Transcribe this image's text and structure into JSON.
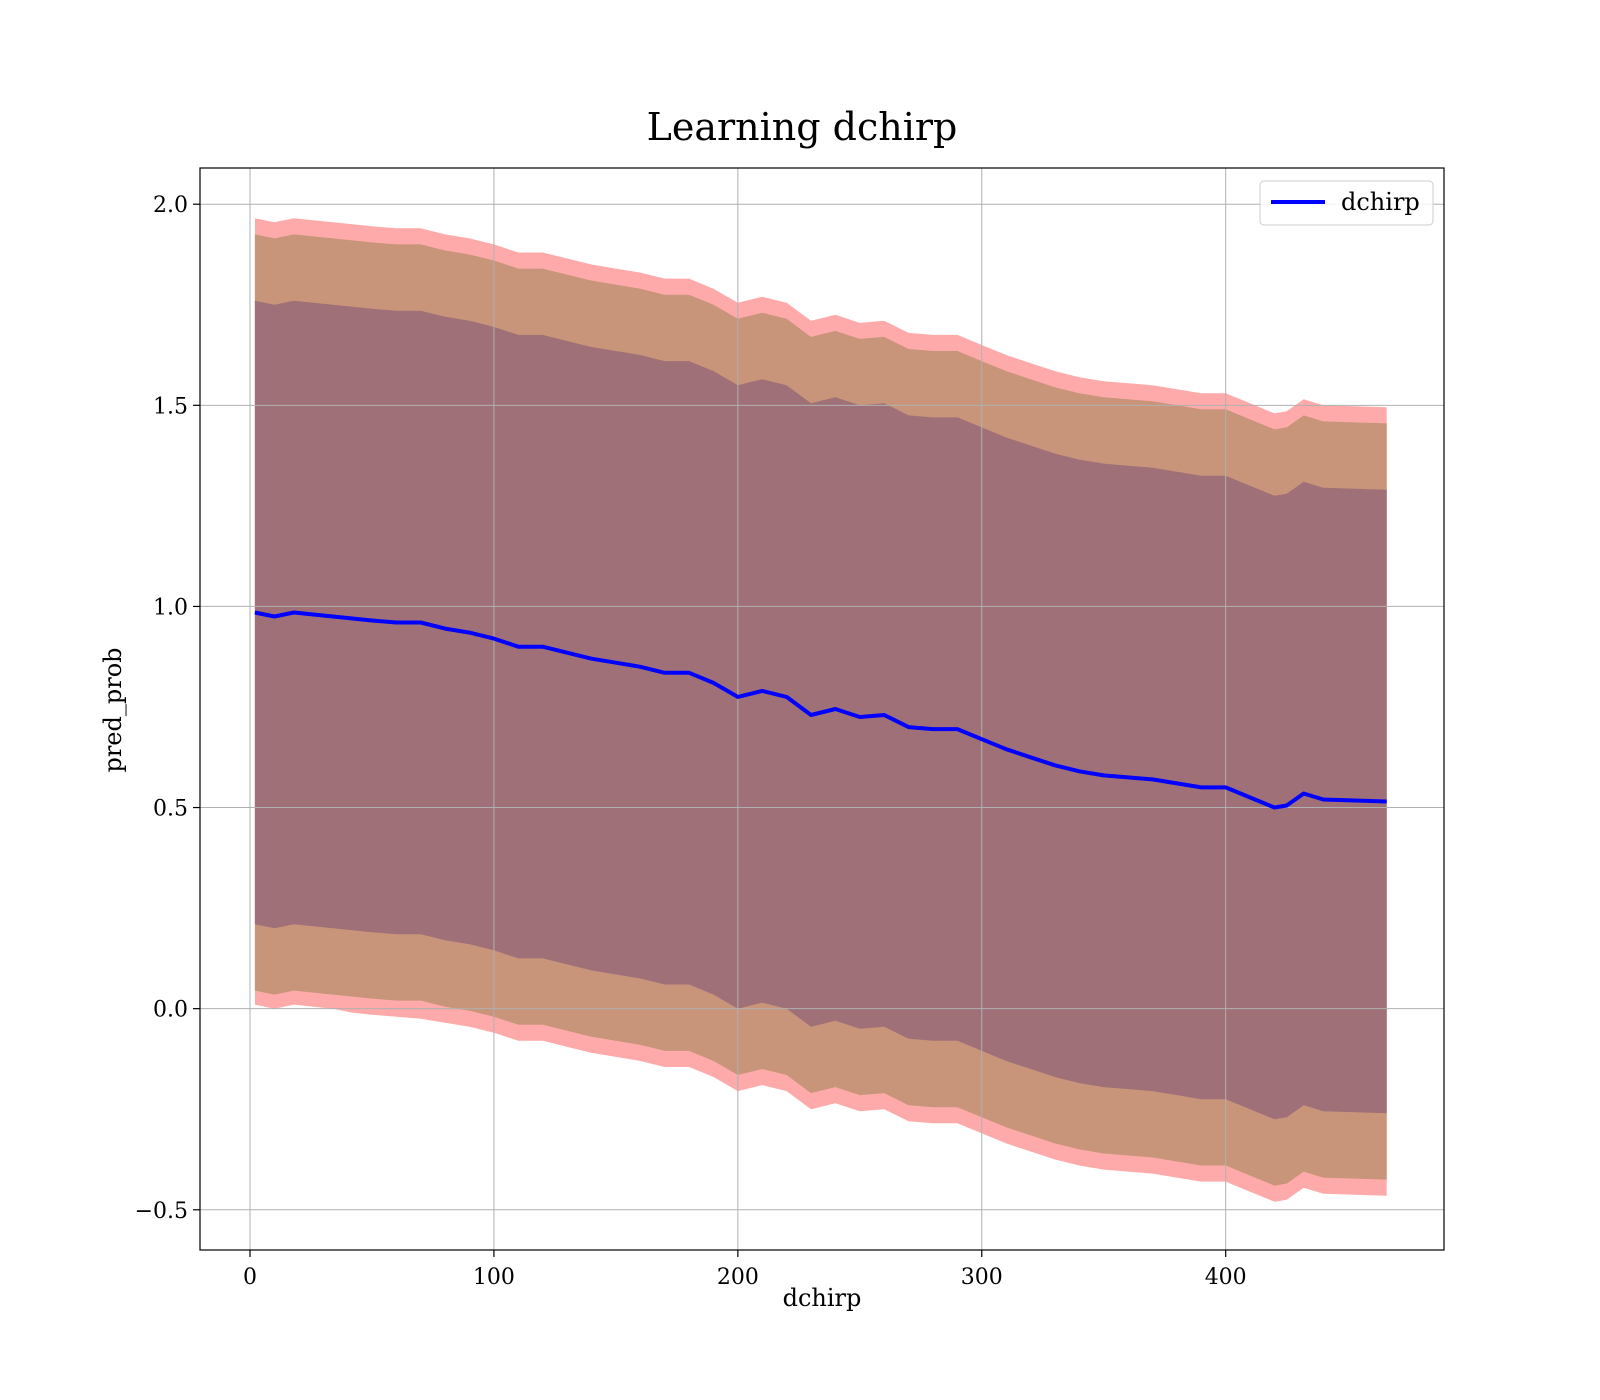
{
  "chart_data": {
    "type": "area",
    "title": "Learning dchirp",
    "xlabel": "dchirp",
    "ylabel": "pred_prob",
    "xlim": [
      -20.5,
      489.5
    ],
    "ylim": [
      -0.6,
      2.09
    ],
    "xticks": [
      0,
      100,
      200,
      300,
      400
    ],
    "xtick_labels": [
      "0",
      "100",
      "200",
      "300",
      "400"
    ],
    "yticks": [
      -0.5,
      0.0,
      0.5,
      1.0,
      1.5,
      2.0
    ],
    "ytick_labels": [
      "−0.5",
      "0.0",
      "0.5",
      "1.0",
      "1.5",
      "2.0"
    ],
    "grid": true,
    "legend": {
      "position": "top-right",
      "entries": [
        "dchirp"
      ]
    },
    "colors": {
      "line": "#0000ff",
      "band_outer": "#ffaaaa",
      "band_middle": "#c8957a",
      "band_inner": "#a07078"
    },
    "x": [
      2,
      10,
      18,
      26,
      34,
      42,
      50,
      60,
      70,
      80,
      90,
      100,
      110,
      120,
      130,
      140,
      150,
      160,
      170,
      180,
      190,
      200,
      210,
      220,
      230,
      240,
      250,
      260,
      270,
      280,
      290,
      300,
      310,
      320,
      330,
      340,
      350,
      360,
      370,
      380,
      390,
      400,
      410,
      420,
      425,
      432,
      440,
      466
    ],
    "series": [
      {
        "name": "dchirp",
        "values": [
          0.985,
          0.975,
          0.985,
          0.98,
          0.975,
          0.97,
          0.965,
          0.96,
          0.96,
          0.945,
          0.935,
          0.92,
          0.9,
          0.9,
          0.885,
          0.87,
          0.86,
          0.85,
          0.835,
          0.835,
          0.81,
          0.775,
          0.79,
          0.775,
          0.73,
          0.745,
          0.725,
          0.73,
          0.7,
          0.695,
          0.695,
          0.67,
          0.645,
          0.625,
          0.605,
          0.59,
          0.58,
          0.575,
          0.57,
          0.56,
          0.55,
          0.55,
          0.525,
          0.5,
          0.505,
          0.535,
          0.52,
          0.515
        ]
      }
    ],
    "bands": [
      {
        "label": "outer",
        "lower": [
          0.01,
          0.0,
          0.01,
          0.005,
          0.0,
          -0.01,
          -0.015,
          -0.02,
          -0.025,
          -0.035,
          -0.045,
          -0.06,
          -0.08,
          -0.08,
          -0.095,
          -0.11,
          -0.12,
          -0.13,
          -0.145,
          -0.145,
          -0.17,
          -0.205,
          -0.19,
          -0.205,
          -0.25,
          -0.235,
          -0.255,
          -0.25,
          -0.28,
          -0.285,
          -0.285,
          -0.31,
          -0.335,
          -0.355,
          -0.375,
          -0.39,
          -0.4,
          -0.405,
          -0.41,
          -0.42,
          -0.43,
          -0.43,
          -0.455,
          -0.48,
          -0.475,
          -0.445,
          -0.46,
          -0.465
        ],
        "upper": [
          1.965,
          1.955,
          1.965,
          1.96,
          1.955,
          1.95,
          1.945,
          1.94,
          1.94,
          1.925,
          1.915,
          1.9,
          1.88,
          1.88,
          1.865,
          1.85,
          1.84,
          1.83,
          1.815,
          1.815,
          1.79,
          1.755,
          1.77,
          1.755,
          1.71,
          1.725,
          1.705,
          1.71,
          1.68,
          1.675,
          1.675,
          1.65,
          1.625,
          1.605,
          1.585,
          1.57,
          1.56,
          1.555,
          1.55,
          1.54,
          1.53,
          1.53,
          1.505,
          1.48,
          1.485,
          1.515,
          1.5,
          1.495
        ]
      },
      {
        "label": "middle",
        "lower": [
          0.045,
          0.035,
          0.045,
          0.04,
          0.035,
          0.03,
          0.025,
          0.02,
          0.02,
          0.005,
          -0.005,
          -0.02,
          -0.04,
          -0.04,
          -0.055,
          -0.07,
          -0.08,
          -0.09,
          -0.105,
          -0.105,
          -0.13,
          -0.165,
          -0.15,
          -0.165,
          -0.21,
          -0.195,
          -0.215,
          -0.21,
          -0.24,
          -0.245,
          -0.245,
          -0.27,
          -0.295,
          -0.315,
          -0.335,
          -0.35,
          -0.36,
          -0.365,
          -0.37,
          -0.38,
          -0.39,
          -0.39,
          -0.415,
          -0.44,
          -0.435,
          -0.405,
          -0.42,
          -0.425
        ],
        "upper": [
          1.925,
          1.915,
          1.925,
          1.92,
          1.915,
          1.91,
          1.905,
          1.9,
          1.9,
          1.885,
          1.875,
          1.86,
          1.84,
          1.84,
          1.825,
          1.81,
          1.8,
          1.79,
          1.775,
          1.775,
          1.75,
          1.715,
          1.73,
          1.715,
          1.67,
          1.685,
          1.665,
          1.67,
          1.64,
          1.635,
          1.635,
          1.61,
          1.585,
          1.565,
          1.545,
          1.53,
          1.52,
          1.515,
          1.51,
          1.5,
          1.49,
          1.49,
          1.465,
          1.44,
          1.445,
          1.475,
          1.46,
          1.455
        ]
      },
      {
        "label": "inner",
        "lower": [
          0.21,
          0.2,
          0.21,
          0.205,
          0.2,
          0.195,
          0.19,
          0.185,
          0.185,
          0.17,
          0.16,
          0.145,
          0.125,
          0.125,
          0.11,
          0.095,
          0.085,
          0.075,
          0.06,
          0.06,
          0.035,
          0.0,
          0.015,
          0.0,
          -0.045,
          -0.03,
          -0.05,
          -0.045,
          -0.075,
          -0.08,
          -0.08,
          -0.105,
          -0.13,
          -0.15,
          -0.17,
          -0.185,
          -0.195,
          -0.2,
          -0.205,
          -0.215,
          -0.225,
          -0.225,
          -0.25,
          -0.275,
          -0.27,
          -0.24,
          -0.255,
          -0.26
        ],
        "upper": [
          1.76,
          1.75,
          1.76,
          1.755,
          1.75,
          1.745,
          1.74,
          1.735,
          1.735,
          1.72,
          1.71,
          1.695,
          1.675,
          1.675,
          1.66,
          1.645,
          1.635,
          1.625,
          1.61,
          1.61,
          1.585,
          1.55,
          1.565,
          1.55,
          1.505,
          1.52,
          1.5,
          1.505,
          1.475,
          1.47,
          1.47,
          1.445,
          1.42,
          1.4,
          1.38,
          1.365,
          1.355,
          1.35,
          1.345,
          1.335,
          1.325,
          1.325,
          1.3,
          1.275,
          1.28,
          1.31,
          1.295,
          1.29
        ]
      }
    ]
  }
}
